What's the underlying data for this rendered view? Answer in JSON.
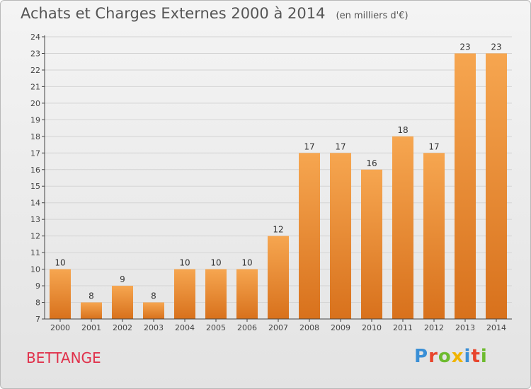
{
  "header": {
    "title": "Achats et Charges Externes 2000 à 2014",
    "unit": "(en milliers d'€)"
  },
  "footer": {
    "commune": "BETTANGE",
    "logo_text": "Proxiti",
    "logo_colors": [
      "#3a8fd6",
      "#e8452c",
      "#6dbb2f",
      "#f0b400",
      "#3a8fd6",
      "#e8452c",
      "#6dbb2f"
    ]
  },
  "colors": {
    "bar_top": "#f6a650",
    "bar_bottom": "#d8711c",
    "grid": "#d4d4d4",
    "axis": "#444444",
    "commune": "#e0304a"
  },
  "chart_data": {
    "type": "bar",
    "title": "Achats et Charges Externes 2000 à 2014",
    "subtitle": "(en milliers d'€)",
    "categories": [
      "2000",
      "2001",
      "2002",
      "2003",
      "2004",
      "2005",
      "2006",
      "2007",
      "2008",
      "2009",
      "2010",
      "2011",
      "2012",
      "2013",
      "2014"
    ],
    "values": [
      10,
      8,
      9,
      8,
      10,
      10,
      10,
      12,
      17,
      17,
      16,
      18,
      17,
      23,
      23
    ],
    "ylim": [
      7,
      24
    ],
    "yticks": [
      7,
      8,
      9,
      10,
      11,
      12,
      13,
      14,
      15,
      16,
      17,
      18,
      19,
      20,
      21,
      22,
      23,
      24
    ],
    "grid": true,
    "data_labels": true
  }
}
